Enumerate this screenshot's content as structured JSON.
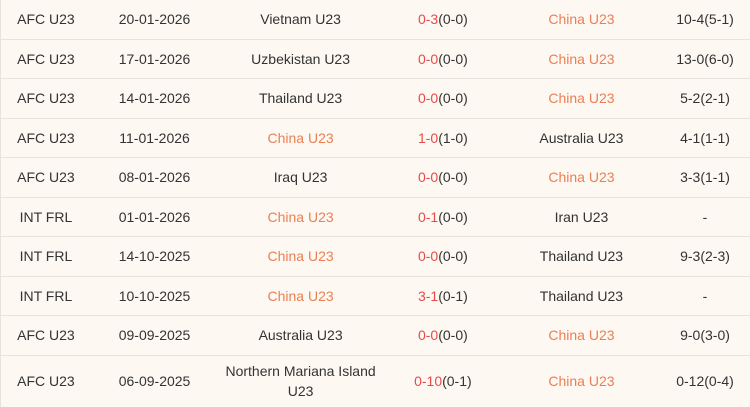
{
  "colors": {
    "background": "#fdf8f2",
    "separator": "#e7e3dd",
    "text": "#333333",
    "score_red": "#e84a4a",
    "highlight_team_orange": "#ea7f55"
  },
  "table": {
    "rows": [
      {
        "competition": "AFC U23",
        "date": "20-01-2026",
        "home": "Vietnam U23",
        "home_highlight": false,
        "score": "0-3",
        "halftime": "(0-0)",
        "away": "China U23",
        "away_highlight": true,
        "stat": "10-4(5-1)"
      },
      {
        "competition": "AFC U23",
        "date": "17-01-2026",
        "home": "Uzbekistan U23",
        "home_highlight": false,
        "score": "0-0",
        "halftime": "(0-0)",
        "away": "China U23",
        "away_highlight": true,
        "stat": "13-0(6-0)"
      },
      {
        "competition": "AFC U23",
        "date": "14-01-2026",
        "home": "Thailand U23",
        "home_highlight": false,
        "score": "0-0",
        "halftime": "(0-0)",
        "away": "China U23",
        "away_highlight": true,
        "stat": "5-2(2-1)"
      },
      {
        "competition": "AFC U23",
        "date": "11-01-2026",
        "home": "China U23",
        "home_highlight": true,
        "score": "1-0",
        "halftime": "(1-0)",
        "away": "Australia U23",
        "away_highlight": false,
        "stat": "4-1(1-1)"
      },
      {
        "competition": "AFC U23",
        "date": "08-01-2026",
        "home": "Iraq U23",
        "home_highlight": false,
        "score": "0-0",
        "halftime": "(0-0)",
        "away": "China U23",
        "away_highlight": true,
        "stat": "3-3(1-1)"
      },
      {
        "competition": "INT FRL",
        "date": "01-01-2026",
        "home": "China U23",
        "home_highlight": true,
        "score": "0-1",
        "halftime": "(0-0)",
        "away": "Iran U23",
        "away_highlight": false,
        "stat": "-"
      },
      {
        "competition": "INT FRL",
        "date": "14-10-2025",
        "home": "China U23",
        "home_highlight": true,
        "score": "0-0",
        "halftime": "(0-0)",
        "away": "Thailand U23",
        "away_highlight": false,
        "stat": "9-3(2-3)"
      },
      {
        "competition": "INT FRL",
        "date": "10-10-2025",
        "home": "China U23",
        "home_highlight": true,
        "score": "3-1",
        "halftime": "(0-1)",
        "away": "Thailand U23",
        "away_highlight": false,
        "stat": "-"
      },
      {
        "competition": "AFC U23",
        "date": "09-09-2025",
        "home": "Australia U23",
        "home_highlight": false,
        "score": "0-0",
        "halftime": "(0-0)",
        "away": "China U23",
        "away_highlight": true,
        "stat": "9-0(3-0)"
      },
      {
        "competition": "AFC U23",
        "date": "06-09-2025",
        "home": "Northern Mariana Island U23",
        "home_highlight": false,
        "score": "0-10",
        "halftime": "(0-1)",
        "away": "China U23",
        "away_highlight": true,
        "stat": "0-12(0-4)"
      }
    ]
  }
}
